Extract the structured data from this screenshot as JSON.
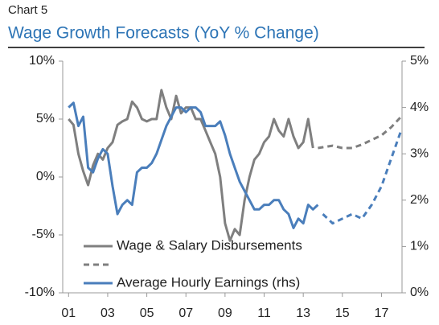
{
  "chart_data": {
    "type": "line",
    "kicker": "Chart 5",
    "title": "Wage Growth Forecasts (YoY % Change)",
    "xlim": [
      2000.7,
      2018.05
    ],
    "xticks": [
      {
        "value": 2001,
        "label": "01"
      },
      {
        "value": 2003,
        "label": "03"
      },
      {
        "value": 2005,
        "label": "05"
      },
      {
        "value": 2007,
        "label": "07"
      },
      {
        "value": 2009,
        "label": "09"
      },
      {
        "value": 2011,
        "label": "11"
      },
      {
        "value": 2013,
        "label": "13"
      },
      {
        "value": 2015,
        "label": "15"
      },
      {
        "value": 2017,
        "label": "17"
      }
    ],
    "ylim": [
      -10,
      10
    ],
    "yticks": [
      {
        "value": -10,
        "label": "-10%"
      },
      {
        "value": -5,
        "label": "-5%"
      },
      {
        "value": 0,
        "label": "0%"
      },
      {
        "value": 5,
        "label": "5%"
      },
      {
        "value": 10,
        "label": "10%"
      }
    ],
    "y2lim": [
      0,
      5
    ],
    "y2ticks": [
      {
        "value": 0,
        "label": "0%"
      },
      {
        "value": 1,
        "label": "1%"
      },
      {
        "value": 2,
        "label": "2%"
      },
      {
        "value": 3,
        "label": "3%"
      },
      {
        "value": 4,
        "label": "4%"
      },
      {
        "value": 5,
        "label": "5%"
      }
    ],
    "series": [
      {
        "name": "Wage & Salary Disbursements",
        "color": "#7f7f7f",
        "dashed": false,
        "in_legend": true,
        "x": [
          2001.0,
          2001.25,
          2001.5,
          2001.75,
          2002.0,
          2002.25,
          2002.5,
          2002.75,
          2003.0,
          2003.25,
          2003.5,
          2003.75,
          2004.0,
          2004.25,
          2004.5,
          2004.75,
          2005.0,
          2005.25,
          2005.5,
          2005.75,
          2006.0,
          2006.25,
          2006.5,
          2006.75,
          2007.0,
          2007.25,
          2007.5,
          2007.75,
          2008.0,
          2008.25,
          2008.5,
          2008.75,
          2009.0,
          2009.25,
          2009.5,
          2009.75,
          2010.0,
          2010.25,
          2010.5,
          2010.75,
          2011.0,
          2011.25,
          2011.5,
          2011.75,
          2012.0,
          2012.25,
          2012.5,
          2012.75,
          2013.0,
          2013.25,
          2013.5
        ],
        "values": [
          5,
          4.5,
          2,
          0.5,
          -0.7,
          1,
          2,
          1.5,
          2.5,
          3,
          4.5,
          4.8,
          5,
          6.5,
          6,
          5,
          4.8,
          5,
          5,
          7.5,
          6,
          5,
          7,
          5.5,
          6,
          6,
          5,
          5,
          4,
          3,
          2,
          0,
          -4,
          -5.5,
          -4.5,
          -5,
          -2,
          0,
          1.5,
          2,
          3,
          3.5,
          5,
          4,
          3.5,
          5,
          3.5,
          2.5,
          3,
          5,
          2.5
        ]
      },
      {
        "color": "#7f7f7f",
        "dashed": true,
        "in_legend": true,
        "x": [
          2013.75,
          2014.5,
          2015.0,
          2015.5,
          2016.0,
          2016.5,
          2017.0,
          2017.5,
          2018.0
        ],
        "values": [
          2.5,
          2.7,
          2.5,
          2.5,
          2.8,
          3.2,
          3.6,
          4.3,
          5.2
        ]
      },
      {
        "name": "Average Hourly Earnings (rhs)",
        "color": "#4a7ebb",
        "axis": "y2",
        "dashed": false,
        "in_legend": true,
        "x": [
          2001.0,
          2001.25,
          2001.5,
          2001.75,
          2002.0,
          2002.25,
          2002.5,
          2002.75,
          2003.0,
          2003.25,
          2003.5,
          2003.75,
          2004.0,
          2004.25,
          2004.5,
          2004.75,
          2005.0,
          2005.25,
          2005.5,
          2005.75,
          2006.0,
          2006.25,
          2006.5,
          2006.75,
          2007.0,
          2007.25,
          2007.5,
          2007.75,
          2008.0,
          2008.25,
          2008.5,
          2008.75,
          2009.0,
          2009.25,
          2009.5,
          2009.75,
          2010.0,
          2010.25,
          2010.5,
          2010.75,
          2011.0,
          2011.25,
          2011.5,
          2011.75,
          2012.0,
          2012.25,
          2012.5,
          2012.75,
          2013.0,
          2013.25,
          2013.5,
          2013.75
        ],
        "values": [
          4,
          4.1,
          3.6,
          3.8,
          2.7,
          2.6,
          2.9,
          3.1,
          3.0,
          2.3,
          1.7,
          1.9,
          2.0,
          1.9,
          2.6,
          2.7,
          2.7,
          2.8,
          3.0,
          3.3,
          3.6,
          3.8,
          4.0,
          4.0,
          3.9,
          4.0,
          4.0,
          3.9,
          3.6,
          3.6,
          3.6,
          3.7,
          3.4,
          3.0,
          2.7,
          2.4,
          2.2,
          2.0,
          1.8,
          1.8,
          1.9,
          1.9,
          2.0,
          2.0,
          1.8,
          1.7,
          1.4,
          1.6,
          1.5,
          1.9,
          1.8,
          1.9
        ]
      },
      {
        "color": "#4a7ebb",
        "axis": "y2",
        "dashed": true,
        "in_legend": false,
        "x": [
          2014.0,
          2014.5,
          2015.0,
          2015.5,
          2016.0,
          2016.5,
          2017.0,
          2017.5,
          2018.0
        ],
        "values": [
          1.7,
          1.5,
          1.6,
          1.7,
          1.6,
          1.9,
          2.3,
          2.9,
          3.5
        ]
      }
    ]
  }
}
